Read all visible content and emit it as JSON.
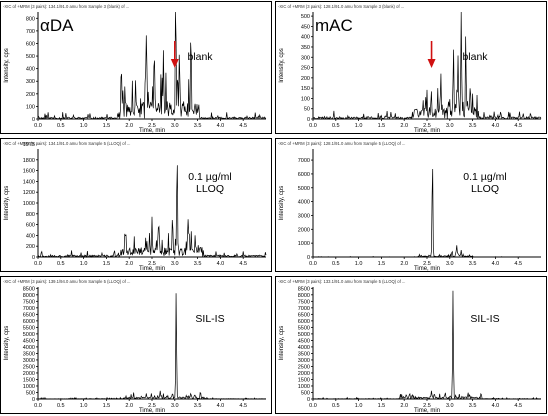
{
  "chart_data": [
    {
      "type": "line",
      "panel": "top-left",
      "header": "-XIC of +MRM (3 pairs): 134.1/91.0 amu from Sample 3 (blank) of ...",
      "annotation_main": "αDA",
      "annotation_sub": [
        "blank"
      ],
      "arrow": true,
      "arrow_at_x": 3.0,
      "xlabel": "Time, min",
      "ylabel": "Intensity, cps",
      "xlim": [
        0,
        5.0
      ],
      "xticks": [
        "0.0",
        "0.5",
        "1.0",
        "1.5",
        "2.0",
        "2.5",
        "3.0",
        "3.5",
        "4.0",
        "4.5"
      ],
      "ylim": [
        0,
        850
      ],
      "yticks": [
        0,
        100,
        200,
        300,
        400,
        500,
        600,
        700,
        800
      ],
      "trace": {
        "seed": 11,
        "noise_start": 1.8,
        "noise_end": 3.55,
        "noise_level": 230,
        "base_level": 25,
        "peaks": [
          [
            2.38,
            610
          ],
          [
            2.55,
            520
          ],
          [
            2.75,
            480
          ],
          [
            3.02,
            810
          ],
          [
            3.1,
            440
          ],
          [
            3.35,
            420
          ]
        ]
      }
    },
    {
      "type": "line",
      "panel": "top-right",
      "header": "-XIC of +MRM (3 pairs): 128.1/91.0 amu from Sample 3 (blank) of ...",
      "annotation_main": "mAC",
      "annotation_sub": [
        "blank"
      ],
      "arrow": true,
      "arrow_at_x": 2.6,
      "xlabel": "Time, min",
      "ylabel": "Intensity, cps",
      "xlim": [
        0,
        5.0
      ],
      "xticks": [
        "0.0",
        "0.5",
        "1.0",
        "1.5",
        "2.0",
        "2.5",
        "3.0",
        "3.5",
        "4.0",
        "4.5"
      ],
      "ylim": [
        0,
        520
      ],
      "yticks": [
        0,
        50,
        100,
        150,
        200,
        250,
        300,
        350,
        400,
        450,
        500
      ],
      "trace": {
        "seed": 23,
        "noise_start": 2.2,
        "noise_end": 3.6,
        "noise_level": 95,
        "base_level": 18,
        "peaks": [
          [
            3.08,
            330
          ],
          [
            3.18,
            290
          ],
          [
            3.25,
            510
          ],
          [
            3.35,
            370
          ],
          [
            3.45,
            150
          ],
          [
            2.8,
            120
          ]
        ]
      }
    },
    {
      "type": "line",
      "panel": "middle-left",
      "header": "-XIC of +MRM (3 pairs): 134.1/91.0 amu from Sample 5 (LLOQ) of ...",
      "annotation_main": "",
      "annotation_sub": [
        "0.1 µg/ml",
        "LLOQ"
      ],
      "arrow": false,
      "xlabel": "Time, min",
      "ylabel": "Intensity, cps",
      "xlim": [
        0,
        5.0
      ],
      "xticks": [
        "0.0",
        "0.5",
        "1.0",
        "1.5",
        "2.0",
        "2.5",
        "3.0",
        "3.5",
        "4.0",
        "4.5"
      ],
      "ylim": [
        0,
        2000
      ],
      "yticks": [
        0,
        200,
        400,
        600,
        800,
        1000,
        1200,
        1400,
        1600,
        1800
      ],
      "extra_top_tick": "1975",
      "trace": {
        "seed": 37,
        "noise_start": 1.8,
        "noise_end": 3.6,
        "noise_level": 280,
        "base_level": 60,
        "peaks": [
          [
            3.05,
            1880
          ],
          [
            2.95,
            720
          ],
          [
            2.5,
            600
          ],
          [
            2.65,
            540
          ],
          [
            3.3,
            380
          ]
        ]
      }
    },
    {
      "type": "line",
      "panel": "middle-right",
      "header": "-XIC of +MRM (3 pairs): 128.1/91.0 amu from Sample 5 (LLOQ) of ...",
      "annotation_main": "",
      "annotation_sub": [
        "0.1 µg/ml",
        "LLOQ"
      ],
      "arrow": false,
      "xlabel": "Time, min",
      "ylabel": "Intensity, cps",
      "xlim": [
        0,
        5.0
      ],
      "xticks": [
        "0.0",
        "0.5",
        "1.0",
        "1.5",
        "2.0",
        "2.5",
        "3.0",
        "3.5",
        "4.0",
        "4.5"
      ],
      "ylim": [
        0,
        7800
      ],
      "yticks": [
        0,
        1000,
        2000,
        3000,
        4000,
        5000,
        6000,
        7000
      ],
      "trace": {
        "seed": 41,
        "noise_start": 2.3,
        "noise_end": 3.5,
        "noise_level": 140,
        "base_level": 20,
        "peaks": [
          [
            2.62,
            7500
          ],
          [
            3.15,
            880
          ],
          [
            3.25,
            420
          ],
          [
            3.05,
            380
          ]
        ]
      }
    },
    {
      "type": "line",
      "panel": "bottom-left",
      "header": "-XIC of +MRM (3 pairs): 139.1/94.0 amu from Sample 5 (LLOQ) of ...",
      "annotation_main": "",
      "annotation_sub": [
        "SIL-IS"
      ],
      "arrow": false,
      "xlabel": "Time, min",
      "ylabel": "Intensity, cps",
      "xlim": [
        0,
        5.0
      ],
      "xticks": [
        "0.0",
        "0.5",
        "1.0",
        "1.5",
        "2.0",
        "2.5",
        "3.0",
        "3.5",
        "4.0",
        "4.5"
      ],
      "ylim": [
        0,
        8600
      ],
      "yticks": [
        0,
        500,
        1000,
        1500,
        2000,
        2500,
        3000,
        3500,
        4000,
        4500,
        5000,
        5500,
        6000,
        6500,
        7000,
        7500,
        8000,
        8500
      ],
      "trace": {
        "seed": 53,
        "noise_start": 1.9,
        "noise_end": 3.7,
        "noise_level": 260,
        "base_level": 50,
        "peaks": [
          [
            3.03,
            8300
          ],
          [
            2.68,
            520
          ],
          [
            2.95,
            420
          ],
          [
            3.35,
            360
          ]
        ]
      }
    },
    {
      "type": "line",
      "panel": "bottom-right",
      "header": "-XIC of +MRM (3 pairs): 133.1/91.0 amu from Sample 5 (LLOQ) of ...",
      "annotation_main": "",
      "annotation_sub": [
        "SIL-IS"
      ],
      "arrow": false,
      "xlabel": "Time, min",
      "ylabel": "Intensity, cps",
      "xlim": [
        0,
        5.0
      ],
      "xticks": [
        "0.0",
        "0.5",
        "1.0",
        "1.5",
        "2.0",
        "2.5",
        "3.0",
        "3.5",
        "4.0",
        "4.5"
      ],
      "ylim": [
        0,
        8600
      ],
      "yticks": [
        0,
        500,
        1000,
        1500,
        2000,
        2500,
        3000,
        3500,
        4000,
        4500,
        5000,
        5500,
        6000,
        6500,
        7000,
        7500,
        8000,
        8500
      ],
      "trace": {
        "seed": 67,
        "noise_start": 1.9,
        "noise_end": 3.7,
        "noise_level": 250,
        "base_level": 50,
        "peaks": [
          [
            3.07,
            8300
          ],
          [
            2.6,
            480
          ],
          [
            2.9,
            400
          ],
          [
            3.4,
            380
          ]
        ]
      }
    }
  ],
  "colors": {
    "trace": "#000000",
    "arrow": "#d01010",
    "frame": "#000000",
    "panel_bg": "#ffffff"
  }
}
